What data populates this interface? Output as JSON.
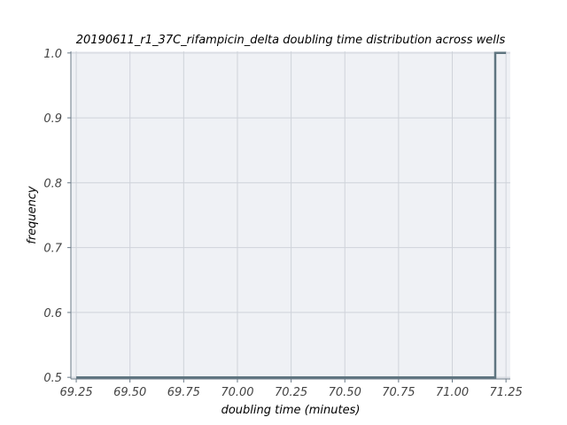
{
  "chart_data": {
    "type": "line",
    "title": "20190611_r1_37C_rifampicin_delta doubling time distribution across wells",
    "xlabel": "doubling time (minutes)",
    "ylabel": "frequency",
    "xlim": [
      69.225,
      71.27
    ],
    "ylim": [
      0.4975,
      1.0025
    ],
    "xticks": [
      "69.25",
      "69.50",
      "69.75",
      "70.00",
      "70.25",
      "70.50",
      "70.75",
      "71.00",
      "71.25"
    ],
    "yticks": [
      "0.5",
      "0.6",
      "0.7",
      "0.8",
      "0.9",
      "1.0"
    ],
    "grid": true,
    "series": [
      {
        "x": [
          69.25,
          71.2,
          71.2,
          71.25
        ],
        "y": [
          0.5,
          0.5,
          1.0,
          1.0
        ],
        "color": "#5f7580"
      }
    ],
    "colors": {
      "plot_background": "#eff1f5",
      "grid": "#cfd3da",
      "axis": "#6b7a87",
      "tick_text": "#444444"
    }
  }
}
